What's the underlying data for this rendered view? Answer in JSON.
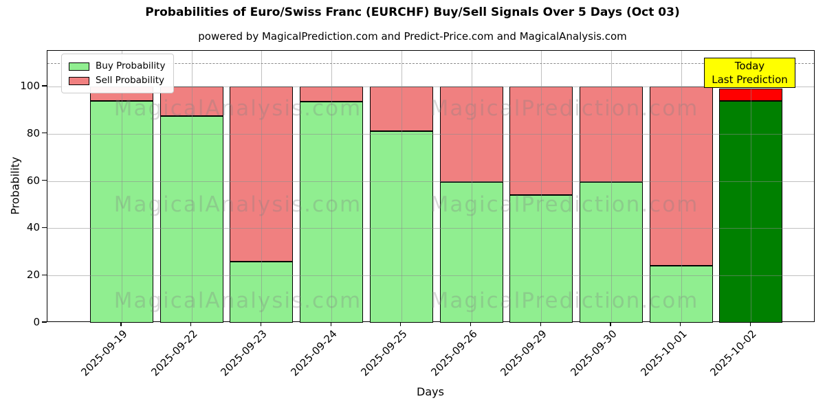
{
  "title": "Probabilities of Euro/Swiss Franc (EURCHF) Buy/Sell Signals Over 5 Days (Oct 03)",
  "subtitle": "powered by MagicalPrediction.com and Predict-Price.com and MagicalAnalysis.com",
  "chart_data": {
    "type": "bar",
    "stacked": true,
    "title": "Probabilities of Euro/Swiss Franc (EURCHF) Buy/Sell Signals Over 5 Days (Oct 03)",
    "subtitle": "powered by MagicalPrediction.com and Predict-Price.com and MagicalAnalysis.com",
    "xlabel": "Days",
    "ylabel": "Probability",
    "categories": [
      "2025-09-19",
      "2025-09-22",
      "2025-09-23",
      "2025-09-24",
      "2025-09-25",
      "2025-09-26",
      "2025-09-29",
      "2025-09-30",
      "2025-10-01",
      "2025-10-02"
    ],
    "series": [
      {
        "name": "Buy Probability",
        "color": "#90ee90",
        "today_color": "#008000",
        "values": [
          94,
          87.5,
          26,
          93.5,
          81,
          59.5,
          54,
          59.5,
          24,
          94
        ]
      },
      {
        "name": "Sell Probability",
        "color": "#f08080",
        "today_color": "#ff0000",
        "values": [
          6,
          12.5,
          74,
          6.5,
          19,
          40.5,
          46,
          40.5,
          76,
          5
        ]
      }
    ],
    "today_index": 9,
    "edge_color": "#000000",
    "yticks": [
      0,
      20,
      40,
      60,
      80,
      100
    ],
    "ylim": [
      0,
      115
    ],
    "dashed_line_y": 110,
    "grid": true,
    "legend_position": "upper left",
    "annotation": {
      "lines": [
        "Today",
        "Last Prediction"
      ],
      "bg": "#ffff00"
    },
    "watermarks": {
      "left_text": "MagicalAnalysis.com",
      "right_text": "MagicalPrediction.com"
    }
  }
}
